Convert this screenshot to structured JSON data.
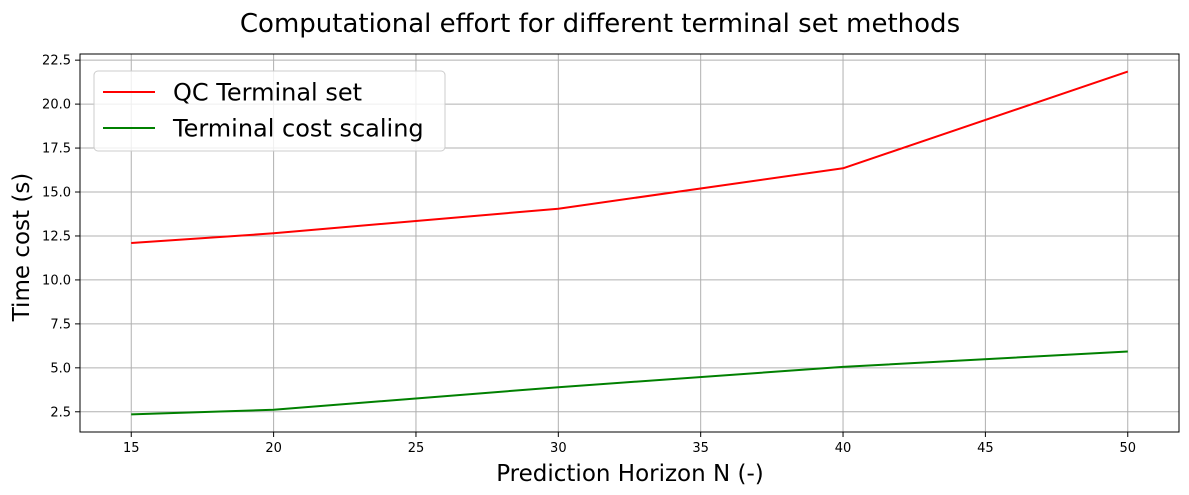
{
  "chart_data": {
    "type": "line",
    "title": "Computational effort for different terminal set methods",
    "xlabel": "Prediction Horizon N (-)",
    "ylabel": "Time cost (s)",
    "xlim": [
      13.2,
      51.8
    ],
    "ylim": [
      1.35,
      22.85
    ],
    "xticks": [
      15,
      20,
      25,
      30,
      35,
      40,
      45,
      50
    ],
    "yticks": [
      2.5,
      5.0,
      7.5,
      10.0,
      12.5,
      15.0,
      17.5,
      20.0,
      22.5
    ],
    "grid": true,
    "legend_position": "top-left",
    "series": [
      {
        "name": "QC Terminal set",
        "color": "#ff0000",
        "x": [
          15,
          20,
          30,
          40,
          50
        ],
        "y": [
          12.1,
          12.65,
          14.05,
          16.35,
          21.85
        ]
      },
      {
        "name": "Terminal cost scaling",
        "color": "#008000",
        "x": [
          15,
          20,
          30,
          40,
          50
        ],
        "y": [
          2.35,
          2.62,
          3.9,
          5.05,
          5.93
        ]
      }
    ]
  }
}
